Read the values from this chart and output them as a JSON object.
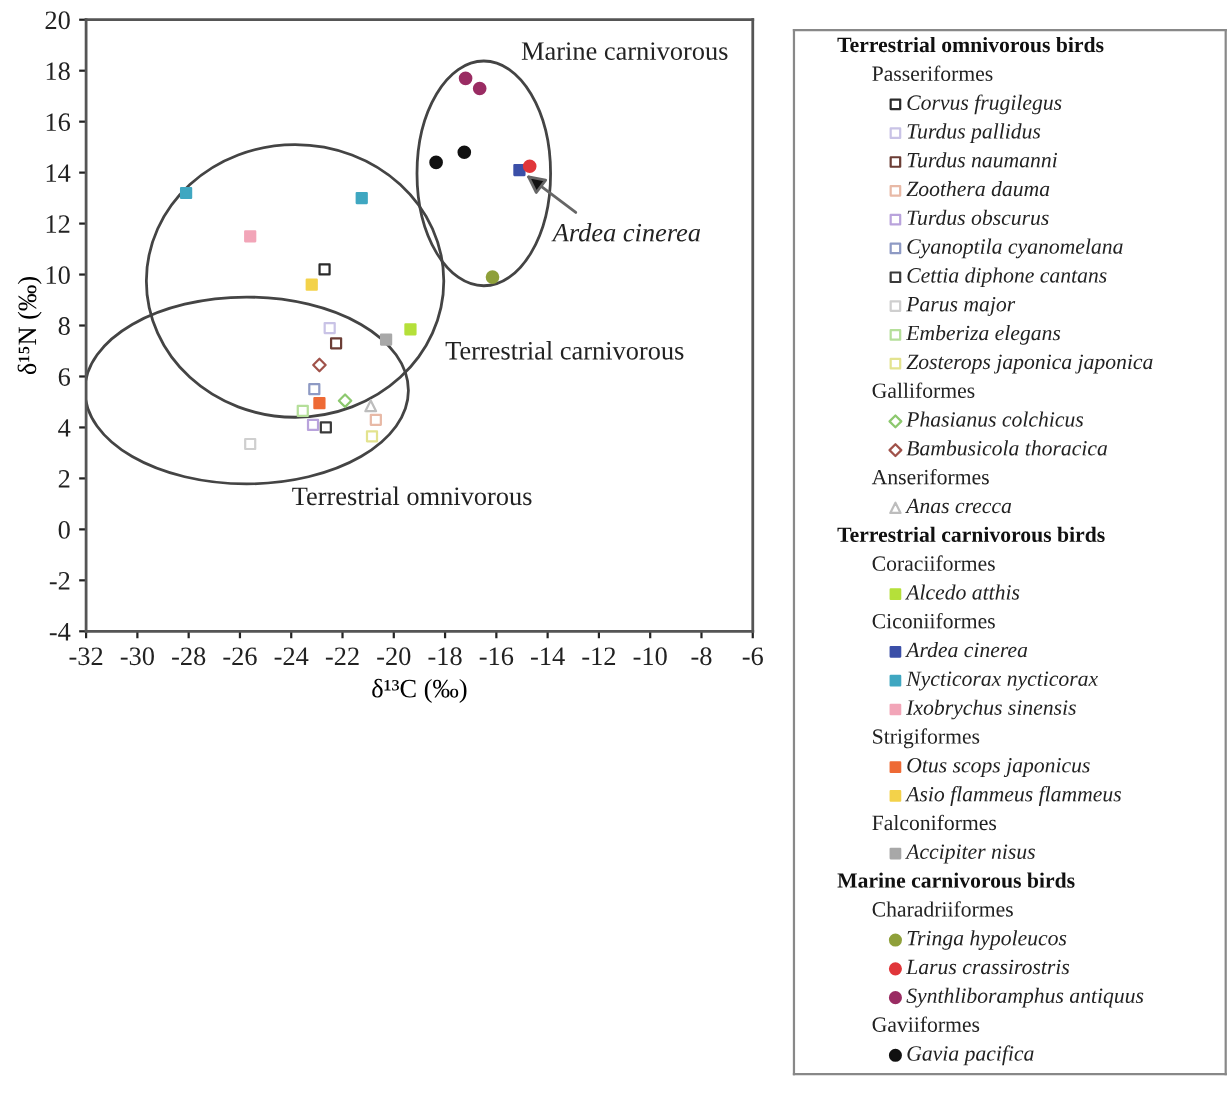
{
  "chart_data": {
    "type": "scatter",
    "xlabel": "δ¹³C (‰)",
    "ylabel": "δ¹⁵N (‰)",
    "xlim": [
      -32,
      -6
    ],
    "ylim": [
      -4,
      20
    ],
    "xticks": [
      -32,
      -30,
      -28,
      -26,
      -24,
      -22,
      -20,
      -18,
      -16,
      -14,
      -12,
      -10,
      -8,
      -6
    ],
    "yticks": [
      -4,
      -2,
      0,
      2,
      4,
      6,
      8,
      10,
      12,
      14,
      16,
      18,
      20
    ],
    "legend": "right",
    "annotations": [
      "Marine carnivorous",
      "Terrestrial carnivorous",
      "Terrestrial omnivorous",
      {
        "text": "Ardea cinerea",
        "x": -15.1,
        "y": 14.1
      }
    ],
    "series": [
      {
        "name": "Terrestrial omnivorous birds"
      },
      {
        "name": "Passeriformes"
      },
      {
        "name": "Corvus frugilegus",
        "marker": "square-open",
        "color": "#2b2b2b",
        "x": [
          -22.7
        ],
        "values": [
          10.2
        ]
      },
      {
        "name": "Turdus pallidus",
        "marker": "square-open",
        "color": "#c9c3e6",
        "x": [
          -22.5
        ],
        "values": [
          7.9
        ]
      },
      {
        "name": "Turdus naumanni",
        "marker": "square-open",
        "color": "#6b3d35",
        "x": [
          -22.25
        ],
        "values": [
          7.3
        ]
      },
      {
        "name": "Zoothera dauma",
        "marker": "square-open",
        "color": "#e8b9a6",
        "x": [
          -20.7
        ],
        "values": [
          4.3
        ]
      },
      {
        "name": "Turdus obscurus",
        "marker": "square-open",
        "color": "#b9a3dc",
        "x": [
          -23.15
        ],
        "values": [
          4.1
        ]
      },
      {
        "name": "Cyanoptila cyanomelana",
        "marker": "square-open",
        "color": "#8e9ac4",
        "x": [
          -23.1
        ],
        "values": [
          5.5
        ]
      },
      {
        "name": "Cettia diphone cantans",
        "marker": "square-open",
        "color": "#3a3a3a",
        "x": [
          -22.65
        ],
        "values": [
          4.0
        ]
      },
      {
        "name": "Parus major",
        "marker": "square-open",
        "color": "#cfcfcf",
        "x": [
          -25.6
        ],
        "values": [
          3.35
        ]
      },
      {
        "name": "Emberiza elegans",
        "marker": "square-open",
        "color": "#b5df9a",
        "x": [
          -23.55
        ],
        "values": [
          4.65
        ]
      },
      {
        "name": "Zosterops japonica japonica",
        "marker": "square-open",
        "color": "#e3e38f",
        "x": [
          -20.85
        ],
        "values": [
          3.65
        ]
      },
      {
        "name": "Galliformes"
      },
      {
        "name": "Phasianus colchicus",
        "marker": "diamond-open",
        "color": "#8cc86e",
        "x": [
          -21.9
        ],
        "values": [
          5.05
        ]
      },
      {
        "name": "Bambusicola thoracica",
        "marker": "diamond-open",
        "color": "#a0524a",
        "x": [
          -22.9
        ],
        "values": [
          6.45
        ]
      },
      {
        "name": "Anseriformes"
      },
      {
        "name": "Anas crecca",
        "marker": "triangle-open",
        "color": "#bdbdbd",
        "x": [
          -20.9
        ],
        "values": [
          4.85
        ]
      },
      {
        "name": "Terrestrial carnivorous birds"
      },
      {
        "name": "Coraciiformes"
      },
      {
        "name": "Alcedo atthis",
        "marker": "square",
        "color": "#b5e03a",
        "x": [
          -19.35
        ],
        "values": [
          7.85
        ]
      },
      {
        "name": "Ciconiiformes"
      },
      {
        "name": "Ardea cinerea",
        "marker": "square",
        "color": "#3b4fa8",
        "x": [
          -15.1
        ],
        "values": [
          14.1
        ]
      },
      {
        "name": "Nycticorax nycticorax",
        "marker": "square",
        "color": "#3fa7c1",
        "x": [
          -28.1,
          -21.25
        ],
        "values": [
          13.2,
          13.0
        ]
      },
      {
        "name": "Ixobrychus sinensis",
        "marker": "square",
        "color": "#f2a5b8",
        "x": [
          -25.6
        ],
        "values": [
          11.5
        ]
      },
      {
        "name": "Strigiformes"
      },
      {
        "name": "Otus scops japonicus",
        "marker": "square",
        "color": "#ee6a35",
        "x": [
          -22.9
        ],
        "values": [
          4.95
        ]
      },
      {
        "name": "Asio flammeus flammeus",
        "marker": "square",
        "color": "#f3d24a",
        "x": [
          -23.2
        ],
        "values": [
          9.6
        ]
      },
      {
        "name": "Falconiformes"
      },
      {
        "name": "Accipiter nisus",
        "marker": "square",
        "color": "#a8a8a8",
        "x": [
          -20.3
        ],
        "values": [
          7.45
        ]
      },
      {
        "name": "Marine carnivorous birds"
      },
      {
        "name": "Charadriiformes"
      },
      {
        "name": "Tringa hypoleucos",
        "marker": "circle",
        "color": "#8fa03a",
        "x": [
          -16.15
        ],
        "values": [
          9.9
        ]
      },
      {
        "name": "Larus crassirostris",
        "marker": "circle",
        "color": "#e0363a",
        "x": [
          -14.7
        ],
        "values": [
          14.25
        ]
      },
      {
        "name": "Synthliboramphus antiquus",
        "marker": "circle",
        "color": "#9a2c63",
        "x": [
          -17.2,
          -16.65
        ],
        "values": [
          17.7,
          17.3
        ]
      },
      {
        "name": "Gaviiformes"
      },
      {
        "name": "Gavia pacifica",
        "marker": "circle",
        "color": "#111111",
        "x": [
          -18.35,
          -17.25
        ],
        "values": [
          14.4,
          14.8
        ]
      }
    ]
  }
}
